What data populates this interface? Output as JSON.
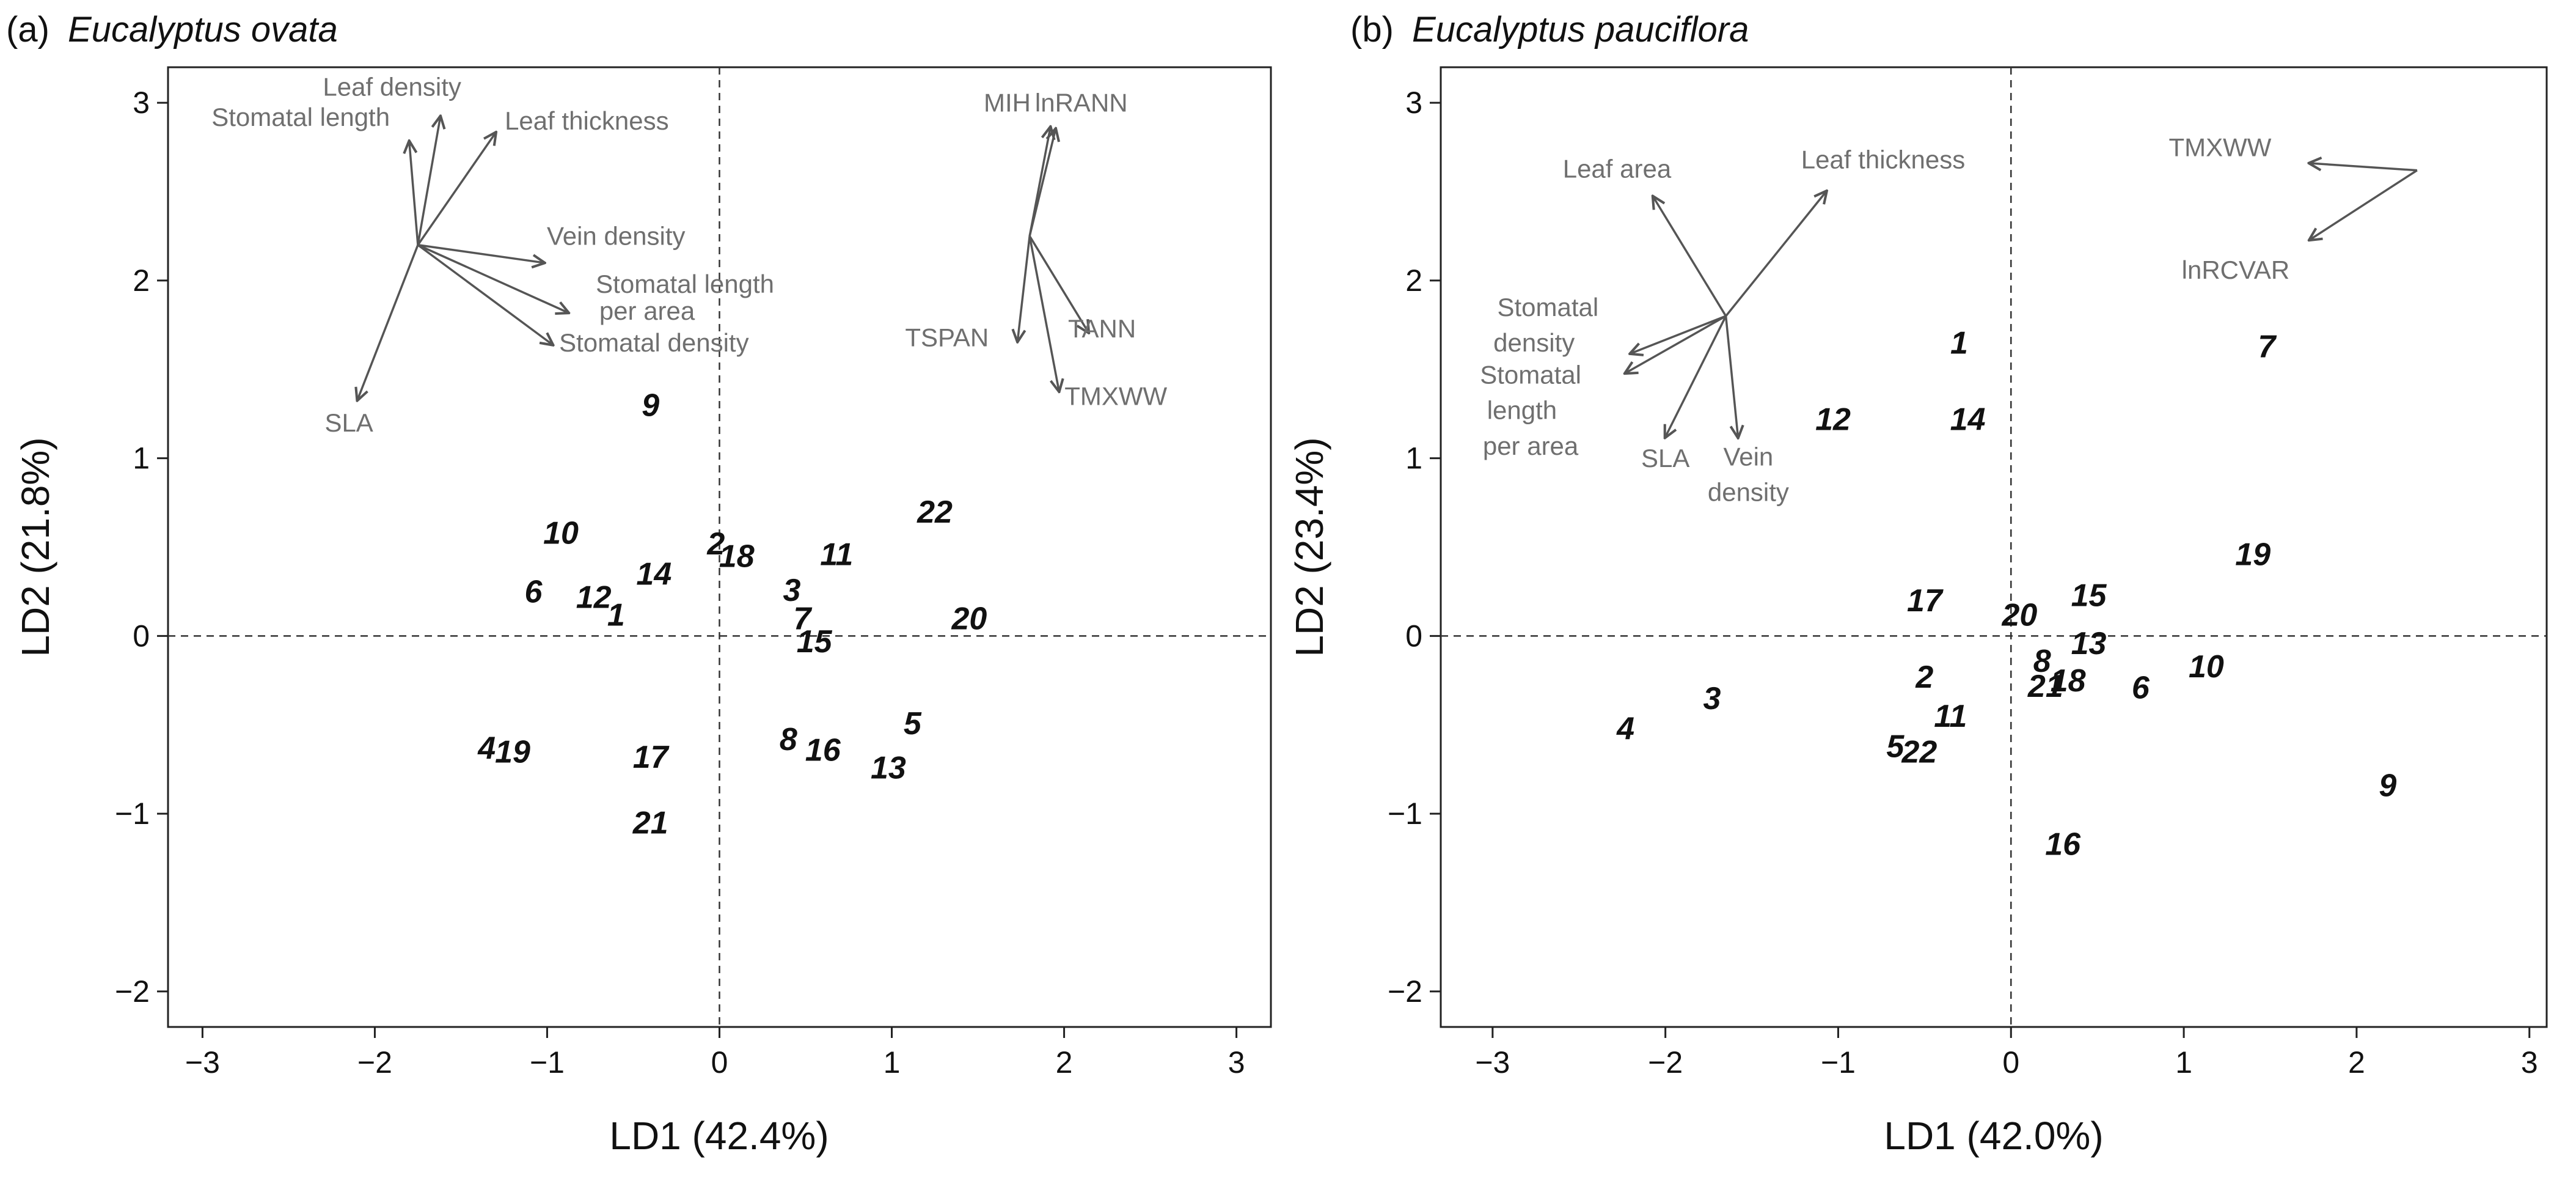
{
  "chart_data": [
    {
      "type": "scatter",
      "title_prefix": "(a)",
      "title_species": "Eucalyptus ovata",
      "xlabel": "LD1 (42.4%)",
      "ylabel": "LD2 (21.8%)",
      "xlim": [
        -3.2,
        3.2
      ],
      "ylim": [
        -2.2,
        3.2
      ],
      "xticks": [
        -3,
        -2,
        -1,
        0,
        1,
        2,
        3
      ],
      "xtick_labels": [
        "−3",
        "−2",
        "−1",
        "0",
        "1",
        "2",
        "3"
      ],
      "yticks": [
        -2,
        -1,
        0,
        1,
        2,
        3
      ],
      "ytick_labels": [
        "−2",
        "−1",
        "0",
        "1",
        "2",
        "3"
      ],
      "reference_lines": {
        "x": 0,
        "y": 0
      },
      "points": [
        {
          "label": "1",
          "x": -0.6,
          "y": 0.12
        },
        {
          "label": "2",
          "x": -0.02,
          "y": 0.52
        },
        {
          "label": "3",
          "x": 0.42,
          "y": 0.26
        },
        {
          "label": "4",
          "x": -1.35,
          "y": -0.63
        },
        {
          "label": "5",
          "x": 1.12,
          "y": -0.49
        },
        {
          "label": "6",
          "x": -1.08,
          "y": 0.25
        },
        {
          "label": "7",
          "x": 0.48,
          "y": 0.1
        },
        {
          "label": "8",
          "x": 0.4,
          "y": -0.58
        },
        {
          "label": "9",
          "x": -0.4,
          "y": 1.3
        },
        {
          "label": "10",
          "x": -0.92,
          "y": 0.58
        },
        {
          "label": "11",
          "x": 0.68,
          "y": 0.46
        },
        {
          "label": "12",
          "x": -0.73,
          "y": 0.22
        },
        {
          "label": "13",
          "x": 0.98,
          "y": -0.74
        },
        {
          "label": "14",
          "x": -0.38,
          "y": 0.35
        },
        {
          "label": "15",
          "x": 0.55,
          "y": -0.03
        },
        {
          "label": "16",
          "x": 0.6,
          "y": -0.64
        },
        {
          "label": "17",
          "x": -0.4,
          "y": -0.68
        },
        {
          "label": "18",
          "x": 0.1,
          "y": 0.45
        },
        {
          "label": "19",
          "x": -1.2,
          "y": -0.65
        },
        {
          "label": "20",
          "x": 1.45,
          "y": 0.1
        },
        {
          "label": "21",
          "x": -0.4,
          "y": -1.05
        },
        {
          "label": "22",
          "x": 1.25,
          "y": 0.7
        }
      ],
      "vector_groups": [
        {
          "origin": [
            -1.75,
            2.2
          ],
          "vectors": [
            {
              "label": "Stomatal length",
              "end": [
                -1.8,
                2.78
              ],
              "label_at": [
                -2.43,
                2.87
              ]
            },
            {
              "label": "Leaf density",
              "end": [
                -1.62,
                2.92
              ],
              "label_at": [
                -1.9,
                3.04
              ]
            },
            {
              "label": "Leaf thickness",
              "end": [
                -1.3,
                2.83
              ],
              "label_at": [
                -0.77,
                2.85
              ]
            },
            {
              "label": "Vein density",
              "end": [
                -1.02,
                2.1
              ],
              "label_at": [
                -0.6,
                2.2
              ]
            },
            {
              "label": "Stomatal length\nper area",
              "end": [
                -0.88,
                1.82
              ],
              "label_at": [
                -0.2,
                1.93
              ],
              "label_at_line2": [
                -0.42,
                1.78
              ]
            },
            {
              "label": "Stomatal density",
              "end": [
                -0.97,
                1.64
              ],
              "label_at": [
                -0.38,
                1.6
              ]
            },
            {
              "label": "SLA",
              "end": [
                -2.1,
                1.33
              ],
              "label_at": [
                -2.15,
                1.15
              ]
            }
          ]
        },
        {
          "origin": [
            1.8,
            2.25
          ],
          "vectors": [
            {
              "label": "MIH",
              "end": [
                1.92,
                2.86
              ],
              "label_at": [
                1.67,
                2.95
              ]
            },
            {
              "label": "lnRANN",
              "end": [
                1.95,
                2.85
              ],
              "label_at": [
                2.1,
                2.95
              ]
            },
            {
              "label": "TSPAN",
              "end": [
                1.73,
                1.66
              ],
              "label_at": [
                1.32,
                1.63
              ]
            },
            {
              "label": "TANN",
              "end": [
                2.14,
                1.71
              ],
              "label_at": [
                2.22,
                1.68
              ]
            },
            {
              "label": "TMXWW",
              "end": [
                1.97,
                1.38
              ],
              "label_at": [
                2.3,
                1.3
              ]
            }
          ]
        }
      ]
    },
    {
      "type": "scatter",
      "title_prefix": "(b)",
      "title_species": "Eucalyptus pauciflora",
      "xlabel": "LD1 (42.0%)",
      "ylabel": "LD2 (23.4%)",
      "xlim": [
        -3.3,
        3.1
      ],
      "ylim": [
        -2.2,
        3.2
      ],
      "xticks": [
        -3,
        -2,
        -1,
        0,
        1,
        2,
        3
      ],
      "xtick_labels": [
        "−3",
        "−2",
        "−1",
        "0",
        "1",
        "2",
        "3"
      ],
      "yticks": [
        -2,
        -1,
        0,
        1,
        2,
        3
      ],
      "ytick_labels": [
        "−2",
        "−1",
        "0",
        "1",
        "2",
        "3"
      ],
      "reference_lines": {
        "x": 0,
        "y": 0
      },
      "points": [
        {
          "label": "1",
          "x": -0.3,
          "y": 1.65
        },
        {
          "label": "2",
          "x": -0.5,
          "y": -0.23
        },
        {
          "label": "3",
          "x": -1.73,
          "y": -0.35
        },
        {
          "label": "4",
          "x": -2.23,
          "y": -0.52
        },
        {
          "label": "5",
          "x": -0.67,
          "y": -0.62
        },
        {
          "label": "6",
          "x": 0.75,
          "y": -0.29
        },
        {
          "label": "7",
          "x": 1.48,
          "y": 1.63
        },
        {
          "label": "8",
          "x": 0.18,
          "y": -0.14
        },
        {
          "label": "9",
          "x": 2.18,
          "y": -0.84
        },
        {
          "label": "10",
          "x": 1.13,
          "y": -0.17
        },
        {
          "label": "11",
          "x": -0.35,
          "y": -0.45
        },
        {
          "label": "12",
          "x": -1.03,
          "y": 1.22
        },
        {
          "label": "13",
          "x": 0.45,
          "y": -0.04
        },
        {
          "label": "14",
          "x": -0.25,
          "y": 1.22
        },
        {
          "label": "15",
          "x": 0.45,
          "y": 0.23
        },
        {
          "label": "16",
          "x": 0.3,
          "y": -1.17
        },
        {
          "label": "17",
          "x": -0.5,
          "y": 0.2
        },
        {
          "label": "18",
          "x": 0.33,
          "y": -0.25
        },
        {
          "label": "19",
          "x": 1.4,
          "y": 0.46
        },
        {
          "label": "20",
          "x": 0.05,
          "y": 0.12
        },
        {
          "label": "21",
          "x": 0.2,
          "y": -0.28
        },
        {
          "label": "22",
          "x": -0.53,
          "y": -0.65
        }
      ],
      "vector_groups": [
        {
          "origin": [
            -1.65,
            1.8
          ],
          "vectors": [
            {
              "label": "Leaf area",
              "end": [
                -2.07,
                2.47
              ],
              "label_at": [
                -2.28,
                2.58
              ]
            },
            {
              "label": "Leaf thickness",
              "end": [
                -1.07,
                2.5
              ],
              "label_at": [
                -0.74,
                2.63
              ]
            },
            {
              "label": "Stomatal\ndensity",
              "end": [
                -2.2,
                1.59
              ],
              "label_at": [
                -2.68,
                1.8
              ],
              "label_at_line2": [
                -2.76,
                1.6
              ]
            },
            {
              "label": "Stomatal\nlength\nper area",
              "end": [
                -2.23,
                1.48
              ],
              "label_at": [
                -2.78,
                1.42
              ],
              "label_at_line2": [
                -2.83,
                1.22
              ],
              "label_at_line3": [
                -2.78,
                1.02
              ]
            },
            {
              "label": "SLA",
              "end": [
                -2.0,
                1.12
              ],
              "label_at": [
                -2.0,
                0.95
              ]
            },
            {
              "label": "Vein\ndensity",
              "end": [
                -1.58,
                1.12
              ],
              "label_at": [
                -1.52,
                0.96
              ],
              "label_at_line2": [
                -1.52,
                0.76
              ]
            }
          ]
        },
        {
          "origin": [
            2.35,
            2.62
          ],
          "vectors": [
            {
              "label": "TMXWW",
              "end": [
                1.73,
                2.66
              ],
              "label_at": [
                1.21,
                2.7
              ]
            },
            {
              "label": "lnRCVAR",
              "end": [
                1.73,
                2.23
              ],
              "label_at": [
                1.3,
                2.01
              ]
            }
          ]
        }
      ]
    }
  ]
}
